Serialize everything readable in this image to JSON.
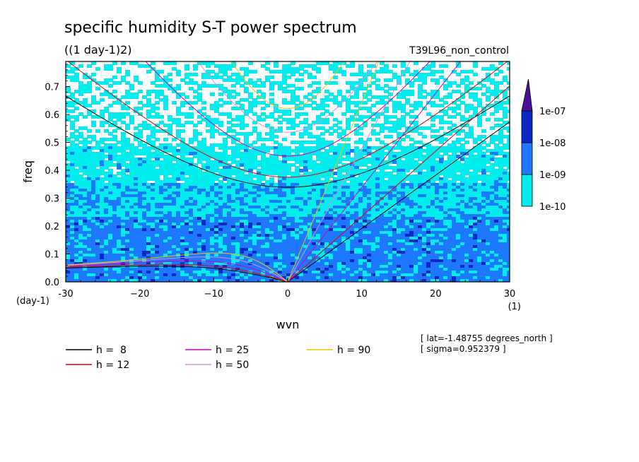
{
  "chart_data": {
    "type": "heatmap",
    "title": "specific humidity S-T power spectrum",
    "subtitle": "((1 day-1)2)",
    "experiment": "T39L96_non_control",
    "xlabel": "wvn",
    "ylabel": "freq",
    "x_unit": "(1)",
    "y_unit": "(day-1)",
    "xlim": [
      -30,
      30
    ],
    "ylim": [
      0,
      0.79
    ],
    "x_ticks": [
      -30,
      -20,
      -10,
      0,
      10,
      20,
      30
    ],
    "x_tick_labels": [
      "-30",
      "−20",
      "−10",
      "0",
      "10",
      "20",
      "30"
    ],
    "y_ticks": [
      0.0,
      0.1,
      0.2,
      0.3,
      0.4,
      0.5,
      0.6,
      0.7
    ],
    "y_tick_labels": [
      "0.0",
      "0.1",
      "0.2",
      "0.3",
      "0.4",
      "0.5",
      "0.6",
      "0.7"
    ],
    "colorbar": {
      "levels": [
        "1e-10",
        "1e-09",
        "1e-08",
        "1e-07"
      ],
      "colors": [
        "#00eeee",
        "#1e78ff",
        "#0a28c8",
        "#46129a"
      ]
    },
    "dispersion_curves": [
      {
        "label": "h =  8",
        "h": 8,
        "color": "#000000"
      },
      {
        "label": "h = 12",
        "h": 12,
        "color": "#e60000"
      },
      {
        "label": "h = 25",
        "h": 25,
        "color": "#d200b4"
      },
      {
        "label": "h = 50",
        "h": 50,
        "color": "#dc8cdc"
      },
      {
        "label": "h = 90",
        "h": 90,
        "color": "#e6c800"
      }
    ],
    "info": [
      "[ lat=-1.48755 degrees_north ]",
      "[ sigma=0.952379 ]"
    ]
  }
}
